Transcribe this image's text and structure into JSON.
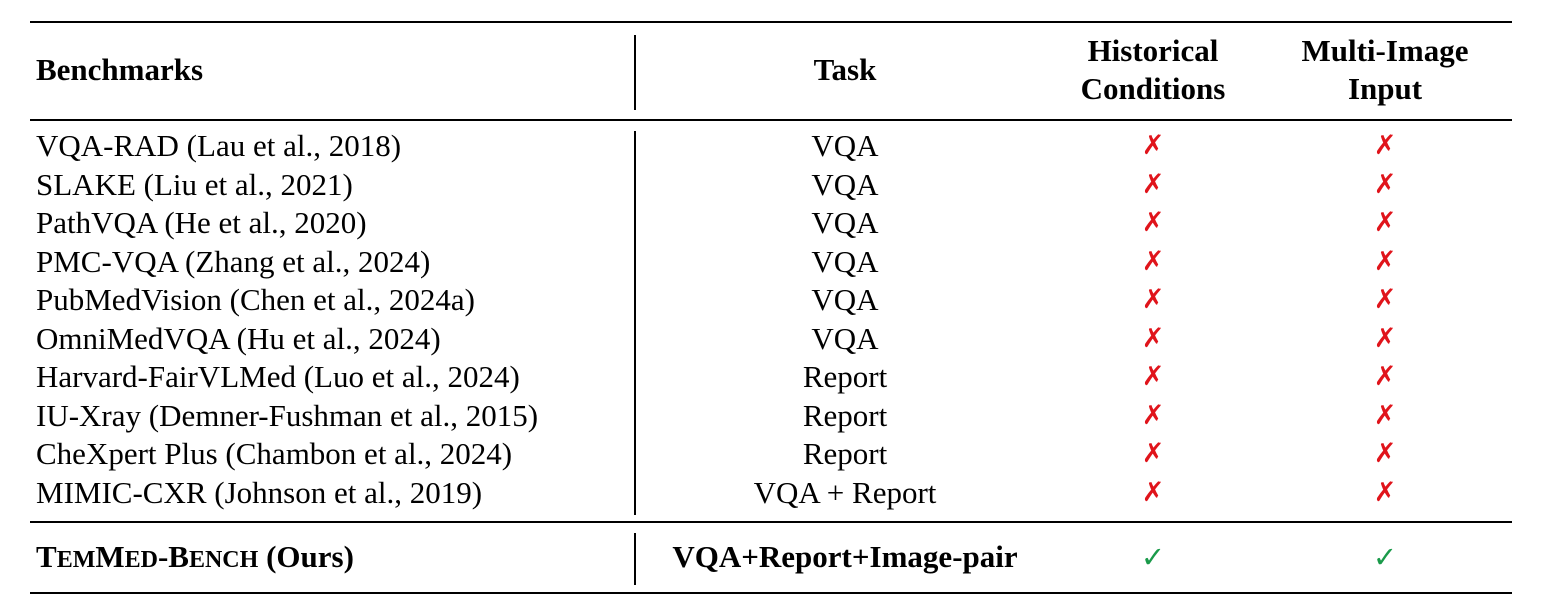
{
  "headers": {
    "benchmarks": "Benchmarks",
    "task": "Task",
    "historical_line1": "Historical",
    "historical_line2": "Conditions",
    "multi_line1": "Multi-Image",
    "multi_line2": "Input"
  },
  "rows": [
    {
      "benchmark": "VQA-RAD (Lau et al., 2018)",
      "task": "VQA",
      "historical": "✗",
      "multi_image": "✗"
    },
    {
      "benchmark": "SLAKE (Liu et al., 2021)",
      "task": "VQA",
      "historical": "✗",
      "multi_image": "✗"
    },
    {
      "benchmark": "PathVQA (He et al., 2020)",
      "task": "VQA",
      "historical": "✗",
      "multi_image": "✗"
    },
    {
      "benchmark": "PMC-VQA (Zhang et al., 2024)",
      "task": "VQA",
      "historical": "✗",
      "multi_image": "✗"
    },
    {
      "benchmark": "PubMedVision (Chen et al., 2024a)",
      "task": "VQA",
      "historical": "✗",
      "multi_image": "✗"
    },
    {
      "benchmark": "OmniMedVQA (Hu et al., 2024)",
      "task": "VQA",
      "historical": "✗",
      "multi_image": "✗"
    },
    {
      "benchmark": "Harvard-FairVLMed (Luo et al., 2024)",
      "task": "Report",
      "historical": "✗",
      "multi_image": "✗"
    },
    {
      "benchmark": "IU-Xray (Demner-Fushman et al., 2015)",
      "task": "Report",
      "historical": "✗",
      "multi_image": "✗"
    },
    {
      "benchmark": "CheXpert Plus (Chambon et al., 2024)",
      "task": "Report",
      "historical": "✗",
      "multi_image": "✗"
    },
    {
      "benchmark": "MIMIC-CXR (Johnson et al., 2019)",
      "task": "VQA + Report",
      "historical": "✗",
      "multi_image": "✗"
    }
  ],
  "ours": {
    "name_T": "T",
    "name_em": "EM",
    "name_M": "M",
    "name_ed": "ED",
    "name_dash_B": "-B",
    "name_ench": "ENCH",
    "name_suffix": " (Ours)",
    "task": "VQA+Report+Image-pair",
    "historical": "✓",
    "multi_image": "✓"
  },
  "colors": {
    "cross": "#e0141b",
    "check": "#1a9a4a"
  }
}
